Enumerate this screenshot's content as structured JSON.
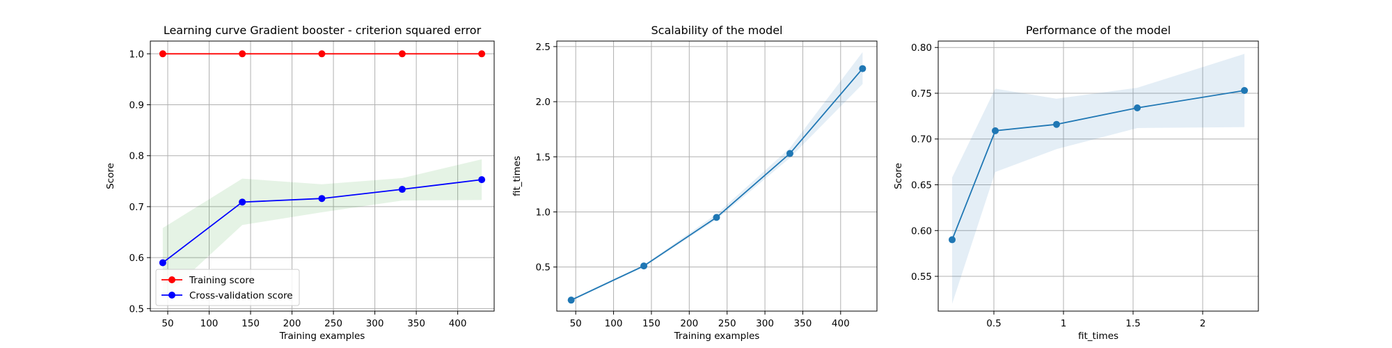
{
  "chart_data": [
    {
      "type": "line",
      "title": "Learning curve Gradient booster - criterion squared error",
      "xlabel": "Training examples",
      "ylabel": "Score",
      "xlim": [
        29,
        444
      ],
      "ylim": [
        0.495,
        1.025
      ],
      "xticks": [
        50,
        100,
        150,
        200,
        250,
        300,
        350,
        400
      ],
      "yticks": [
        0.5,
        0.6,
        0.7,
        0.8,
        0.9,
        1.0
      ],
      "ytick_labels": [
        "0.5",
        "0.6",
        "0.7",
        "0.8",
        "0.9",
        "1.0"
      ],
      "grid": true,
      "legend_position": "lower-left",
      "x": [
        44,
        140,
        236,
        333,
        429
      ],
      "series": [
        {
          "name": "Training score",
          "color": "#ff0000",
          "values": [
            1.0,
            1.0,
            1.0,
            1.0,
            1.0
          ],
          "band_lower": [
            1.0,
            1.0,
            1.0,
            1.0,
            1.0
          ],
          "band_upper": [
            1.0,
            1.0,
            1.0,
            1.0,
            1.0
          ]
        },
        {
          "name": "Cross-validation score",
          "color": "#0000ff",
          "band_color": "#2ca02c",
          "values": [
            0.59,
            0.709,
            0.716,
            0.734,
            0.753
          ],
          "band_lower": [
            0.52,
            0.664,
            0.689,
            0.712,
            0.713
          ],
          "band_upper": [
            0.658,
            0.755,
            0.744,
            0.756,
            0.793
          ]
        }
      ]
    },
    {
      "type": "line",
      "title": "Scalability of the model",
      "xlabel": "Training examples",
      "ylabel": "fit_times",
      "xlim": [
        25,
        448
      ],
      "ylim": [
        0.1,
        2.55
      ],
      "xticks": [
        50,
        100,
        150,
        200,
        250,
        300,
        350,
        400
      ],
      "yticks": [
        0.5,
        1.0,
        1.5,
        2.0,
        2.5
      ],
      "ytick_labels": [
        "0.5",
        "1.0",
        "1.5",
        "2.0",
        "2.5"
      ],
      "grid": true,
      "x": [
        44,
        140,
        236,
        333,
        429
      ],
      "series": [
        {
          "color": "#1f77b4",
          "values": [
            0.2,
            0.51,
            0.95,
            1.53,
            2.3
          ],
          "band_lower": [
            0.19,
            0.5,
            0.93,
            1.49,
            2.16
          ],
          "band_upper": [
            0.21,
            0.52,
            0.98,
            1.58,
            2.45
          ]
        }
      ]
    },
    {
      "type": "line",
      "title": "Performance of the model",
      "xlabel": "fit_times",
      "ylabel": "Score",
      "xlim": [
        0.1,
        2.4
      ],
      "ylim": [
        0.512,
        0.807
      ],
      "xticks": [
        0.5,
        1.0,
        1.5,
        2.0
      ],
      "yticks": [
        0.55,
        0.6,
        0.65,
        0.7,
        0.75,
        0.8
      ],
      "ytick_labels": [
        "0.55",
        "0.60",
        "0.65",
        "0.70",
        "0.75",
        "0.80"
      ],
      "grid": true,
      "x": [
        0.2,
        0.51,
        0.95,
        1.53,
        2.3
      ],
      "series": [
        {
          "color": "#1f77b4",
          "values": [
            0.59,
            0.709,
            0.716,
            0.734,
            0.753
          ],
          "band_lower": [
            0.52,
            0.664,
            0.689,
            0.712,
            0.713
          ],
          "band_upper": [
            0.658,
            0.755,
            0.744,
            0.756,
            0.793
          ]
        }
      ]
    }
  ]
}
